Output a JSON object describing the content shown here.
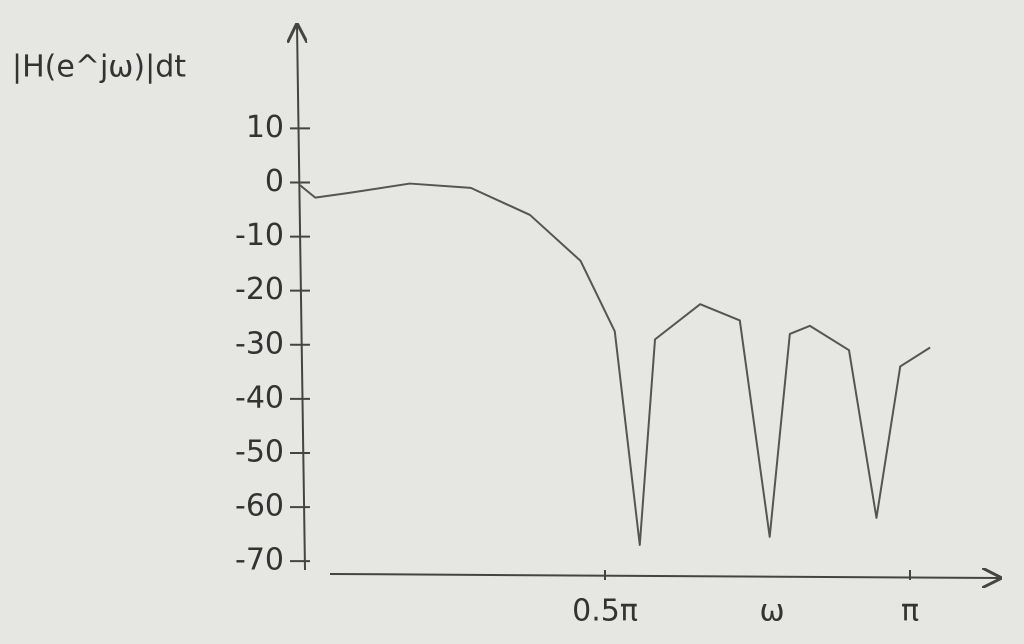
{
  "chart_data": {
    "type": "line",
    "y_label": "|H(e^jω)|dt",
    "x_label": "ω",
    "x": [
      0,
      0.025,
      0.082,
      0.18,
      0.28,
      0.377,
      0.46,
      0.516,
      0.557,
      0.582,
      0.656,
      0.721,
      0.77,
      0.803,
      0.836,
      0.9,
      0.945,
      0.984,
      1.033
    ],
    "series": [
      {
        "color": "#555555",
        "values": [
          -0.5,
          -2.8,
          -1.9,
          -0.2,
          -1,
          -6,
          -14.5,
          -27.5,
          -67,
          -29,
          -22.5,
          -25.5,
          -65.5,
          -28,
          -26.5,
          -31,
          -62,
          -34,
          -30.5
        ]
      }
    ],
    "xlim": [
      0,
      1.1
    ],
    "xticks": [
      {
        "value": 0.5,
        "label": "0.5π"
      },
      {
        "value": 1,
        "label": "π"
      }
    ],
    "ylim": [
      -72,
      28
    ],
    "yticks": [
      10,
      0,
      -10,
      -20,
      -30,
      -40,
      -50,
      -60,
      -70
    ],
    "grid": false
  }
}
